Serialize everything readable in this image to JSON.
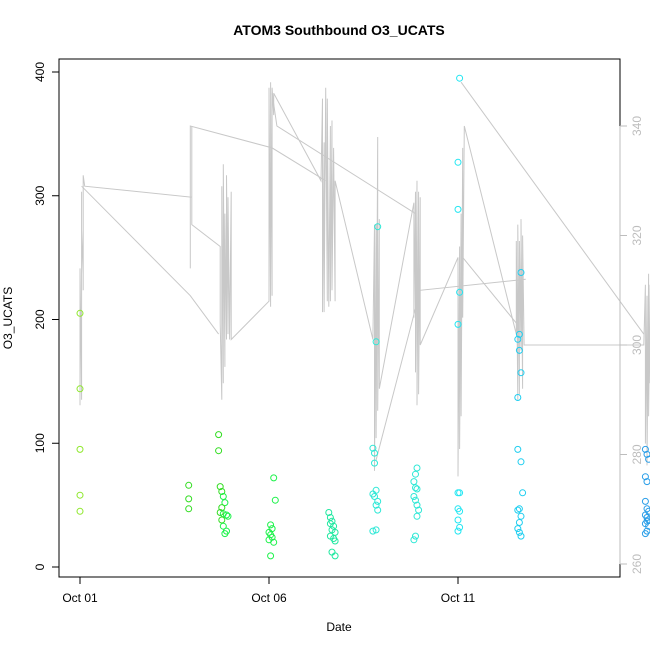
{
  "chart_data": {
    "type": "scatter",
    "title": "ATOM3 Southbound O3_UCATS",
    "xlabel": "Date",
    "ylabel": "O3_UCATS",
    "x_axis": {
      "type": "date",
      "ticks": [
        "Oct 01",
        "Oct 06",
        "Oct 11"
      ]
    },
    "y_left": {
      "ticks": [
        "0",
        "100",
        "200",
        "300",
        "400"
      ],
      "range": [
        0,
        400
      ]
    },
    "y_right": {
      "ticks": [
        "260",
        "280",
        "300",
        "320",
        "340"
      ],
      "range": [
        260,
        350
      ],
      "color": "#bdbdbd"
    },
    "background_line_color": "#c8c8c8",
    "point_colors": [
      "#8ee82b",
      "#33dd22",
      "#1cf24a",
      "#1fe8a0",
      "#2ee8d6",
      "#22e6f2",
      "#1fcef0",
      "#2a9ee8"
    ],
    "series": [
      {
        "marker": "open-circle",
        "axis": "left",
        "points": [
          [
            "2016-10-01 00:00",
            205
          ],
          [
            "2016-10-01 00:00",
            144
          ],
          [
            "2016-10-01 00:00",
            95
          ],
          [
            "2016-10-01 00:00",
            58
          ],
          [
            "2016-10-01 00:00",
            45
          ],
          [
            "2016-10-03 21:00",
            66
          ],
          [
            "2016-10-03 21:00",
            55
          ],
          [
            "2016-10-03 21:00",
            47
          ],
          [
            "2016-10-04 16:00",
            107
          ],
          [
            "2016-10-04 16:00",
            94
          ],
          [
            "2016-10-04 17:00",
            65
          ],
          [
            "2016-10-04 18:00",
            61
          ],
          [
            "2016-10-04 19:00",
            57
          ],
          [
            "2016-10-04 20:00",
            52
          ],
          [
            "2016-10-04 18:00",
            48
          ],
          [
            "2016-10-04 17:00",
            44
          ],
          [
            "2016-10-04 19:00",
            43
          ],
          [
            "2016-10-04 21:00",
            42
          ],
          [
            "2016-10-04 22:00",
            41
          ],
          [
            "2016-10-04 18:00",
            38
          ],
          [
            "2016-10-04 19:00",
            33
          ],
          [
            "2016-10-04 21:00",
            29
          ],
          [
            "2016-10-04 20:00",
            27
          ],
          [
            "2016-10-06 01:00",
            34
          ],
          [
            "2016-10-06 02:00",
            31
          ],
          [
            "2016-10-06 00:00",
            28
          ],
          [
            "2016-10-06 01:00",
            26
          ],
          [
            "2016-10-06 02:00",
            24
          ],
          [
            "2016-10-06 00:00",
            22
          ],
          [
            "2016-10-06 03:00",
            20
          ],
          [
            "2016-10-06 03:00",
            72
          ],
          [
            "2016-10-06 04:00",
            54
          ],
          [
            "2016-10-06 01:00",
            9
          ],
          [
            "2016-10-07 14:00",
            44
          ],
          [
            "2016-10-07 15:00",
            40
          ],
          [
            "2016-10-07 16:00",
            37
          ],
          [
            "2016-10-07 15:00",
            35
          ],
          [
            "2016-10-07 17:00",
            33
          ],
          [
            "2016-10-07 16:00",
            30
          ],
          [
            "2016-10-07 18:00",
            28
          ],
          [
            "2016-10-07 15:00",
            25
          ],
          [
            "2016-10-07 17:00",
            23
          ],
          [
            "2016-10-07 18:00",
            21
          ],
          [
            "2016-10-07 16:00",
            12
          ],
          [
            "2016-10-07 18:00",
            9
          ],
          [
            "2016-10-08 18:00",
            96
          ],
          [
            "2016-10-08 19:00",
            92
          ],
          [
            "2016-10-08 19:00",
            84
          ],
          [
            "2016-10-08 20:00",
            62
          ],
          [
            "2016-10-08 18:00",
            59
          ],
          [
            "2016-10-08 19:00",
            57
          ],
          [
            "2016-10-08 21:00",
            53
          ],
          [
            "2016-10-08 20:00",
            50
          ],
          [
            "2016-10-08 21:00",
            46
          ],
          [
            "2016-10-08 18:00",
            29
          ],
          [
            "2016-10-08 20:00",
            30
          ],
          [
            "2016-10-08 20:00",
            182
          ],
          [
            "2016-10-08 21:00",
            275
          ],
          [
            "2016-10-09 22:00",
            80
          ],
          [
            "2016-10-09 21:00",
            75
          ],
          [
            "2016-10-09 20:00",
            69
          ],
          [
            "2016-10-09 21:00",
            64
          ],
          [
            "2016-10-09 22:00",
            63
          ],
          [
            "2016-10-09 20:00",
            57
          ],
          [
            "2016-10-09 21:00",
            54
          ],
          [
            "2016-10-09 22:00",
            50
          ],
          [
            "2016-10-09 23:00",
            46
          ],
          [
            "2016-10-09 22:00",
            41
          ],
          [
            "2016-10-09 21:00",
            25
          ],
          [
            "2016-10-09 20:00",
            22
          ],
          [
            "2016-10-11 01:00",
            395
          ],
          [
            "2016-10-11 00:00",
            327
          ],
          [
            "2016-10-11 00:00",
            289
          ],
          [
            "2016-10-11 01:00",
            222
          ],
          [
            "2016-10-11 00:00",
            196
          ],
          [
            "2016-10-11 00:00",
            60
          ],
          [
            "2016-10-11 01:00",
            60
          ],
          [
            "2016-10-11 00:00",
            47
          ],
          [
            "2016-10-11 01:00",
            45
          ],
          [
            "2016-10-11 00:00",
            38
          ],
          [
            "2016-10-11 01:00",
            32
          ],
          [
            "2016-10-11 00:00",
            29
          ],
          [
            "2016-10-12 14:00",
            184
          ],
          [
            "2016-10-12 15:00",
            188
          ],
          [
            "2016-10-12 16:00",
            238
          ],
          [
            "2016-10-12 15:00",
            175
          ],
          [
            "2016-10-12 16:00",
            157
          ],
          [
            "2016-10-12 14:00",
            137
          ],
          [
            "2016-10-12 14:00",
            95
          ],
          [
            "2016-10-12 16:00",
            85
          ],
          [
            "2016-10-12 17:00",
            60
          ],
          [
            "2016-10-12 14:00",
            46
          ],
          [
            "2016-10-12 15:00",
            47
          ],
          [
            "2016-10-12 16:00",
            41
          ],
          [
            "2016-10-12 15:00",
            36
          ],
          [
            "2016-10-12 14:00",
            31
          ],
          [
            "2016-10-12 15:00",
            28
          ],
          [
            "2016-10-12 16:00",
            25
          ],
          [
            "2016-10-15 23:00",
            95
          ],
          [
            "2016-10-16 00:00",
            91
          ],
          [
            "2016-10-16 01:00",
            87
          ],
          [
            "2016-10-15 23:00",
            73
          ],
          [
            "2016-10-16 00:00",
            69
          ],
          [
            "2016-10-15 23:00",
            53
          ],
          [
            "2016-10-16 00:00",
            47
          ],
          [
            "2016-10-16 01:00",
            45
          ],
          [
            "2016-10-15 23:00",
            42
          ],
          [
            "2016-10-16 00:00",
            40
          ],
          [
            "2016-10-16 01:00",
            38
          ],
          [
            "2016-10-16 00:00",
            37
          ],
          [
            "2016-10-15 23:00",
            35
          ],
          [
            "2016-10-16 01:00",
            33
          ],
          [
            "2016-10-16 00:00",
            29
          ],
          [
            "2016-10-15 23:00",
            27
          ]
        ]
      },
      {
        "marker": "line",
        "axis": "right",
        "points": [
          [
            "2016-10-01 00:00",
            289
          ],
          [
            "2016-10-01 00:00",
            314
          ],
          [
            "2016-10-01 01:00",
            290
          ],
          [
            "2016-10-01 01:00",
            328
          ],
          [
            "2016-10-01 01:00",
            313
          ],
          [
            "2016-10-01 02:00",
            321
          ],
          [
            "2016-10-01 02:00",
            310
          ],
          [
            "2016-10-01 02:00",
            331
          ],
          [
            "2016-10-01 03:00",
            329
          ],
          [
            "2016-10-03 23:00",
            327
          ],
          [
            "2016-10-03 23:00",
            340
          ],
          [
            "2016-10-03 23:00",
            322
          ],
          [
            "2016-10-04 17:00",
            318
          ],
          [
            "2016-10-04 17:00",
            304
          ],
          [
            "2016-10-04 18:00",
            290
          ],
          [
            "2016-10-04 18:00",
            329
          ],
          [
            "2016-10-04 19:00",
            293
          ],
          [
            "2016-10-04 19:00",
            333
          ],
          [
            "2016-10-04 20:00",
            296
          ],
          [
            "2016-10-04 20:00",
            324
          ],
          [
            "2016-10-04 21:00",
            301
          ],
          [
            "2016-10-04 21:00",
            331
          ],
          [
            "2016-10-04 22:00",
            302
          ],
          [
            "2016-10-04 22:00",
            327
          ],
          [
            "2016-10-04 23:00",
            301
          ],
          [
            "2016-10-05 00:00",
            328
          ],
          [
            "2016-10-05 00:00",
            301
          ],
          [
            "2016-10-06 00:00",
            308
          ],
          [
            "2016-10-06 00:00",
            347
          ],
          [
            "2016-10-06 01:00",
            307
          ],
          [
            "2016-10-06 01:00",
            348
          ],
          [
            "2016-10-06 02:00",
            309
          ],
          [
            "2016-10-06 02:00",
            347
          ],
          [
            "2016-10-06 03:00",
            342
          ],
          [
            "2016-10-06 03:00",
            346
          ],
          [
            "2016-10-07 09:00",
            330
          ],
          [
            "2016-10-07 10:00",
            345
          ],
          [
            "2016-10-07 10:00",
            306
          ],
          [
            "2016-10-07 11:00",
            337
          ],
          [
            "2016-10-07 11:00",
            306
          ],
          [
            "2016-10-07 12:00",
            347
          ],
          [
            "2016-10-07 13:00",
            308
          ],
          [
            "2016-10-07 13:00",
            345
          ],
          [
            "2016-10-07 14:00",
            307
          ],
          [
            "2016-10-07 15:00",
            340
          ],
          [
            "2016-10-07 15:00",
            308
          ],
          [
            "2016-10-07 16:00",
            341
          ],
          [
            "2016-10-07 16:00",
            310
          ],
          [
            "2016-10-07 17:00",
            336
          ],
          [
            "2016-10-07 18:00",
            308
          ],
          [
            "2016-10-07 18:00",
            330
          ],
          [
            "2016-10-08 18:00",
            301
          ],
          [
            "2016-10-08 19:00",
            322
          ],
          [
            "2016-10-08 19:00",
            277
          ],
          [
            "2016-10-08 20:00",
            322
          ],
          [
            "2016-10-08 20:00",
            283
          ],
          [
            "2016-10-08 21:00",
            338
          ],
          [
            "2016-10-08 21:00",
            288
          ],
          [
            "2016-10-08 22:00",
            323
          ],
          [
            "2016-10-08 22:00",
            292
          ],
          [
            "2016-10-09 20:00",
            326
          ],
          [
            "2016-10-09 20:00",
            305
          ],
          [
            "2016-10-09 21:00",
            328
          ],
          [
            "2016-10-09 21:00",
            295
          ],
          [
            "2016-10-09 22:00",
            330
          ],
          [
            "2016-10-09 22:00",
            289
          ],
          [
            "2016-10-09 23:00",
            328
          ],
          [
            "2016-10-09 23:00",
            291
          ],
          [
            "2016-10-10 00:00",
            327
          ],
          [
            "2016-10-10 00:00",
            300
          ],
          [
            "2016-10-11 00:00",
            316
          ],
          [
            "2016-10-11 00:00",
            276
          ],
          [
            "2016-10-11 01:00",
            318
          ],
          [
            "2016-10-11 01:00",
            281
          ],
          [
            "2016-10-11 02:00",
            324
          ],
          [
            "2016-10-11 02:00",
            287
          ],
          [
            "2016-10-11 03:00",
            336
          ],
          [
            "2016-10-11 03:00",
            305
          ],
          [
            "2016-10-11 04:00",
            340
          ],
          [
            "2016-10-12 13:00",
            302
          ],
          [
            "2016-10-12 13:00",
            319
          ],
          [
            "2016-10-12 14:00",
            290
          ],
          [
            "2016-10-12 14:00",
            322
          ],
          [
            "2016-10-12 15:00",
            291
          ],
          [
            "2016-10-12 15:00",
            319
          ],
          [
            "2016-10-12 16:00",
            299
          ],
          [
            "2016-10-12 16:00",
            323
          ],
          [
            "2016-10-12 17:00",
            292
          ],
          [
            "2016-10-12 17:00",
            320
          ],
          [
            "2016-10-12 18:00",
            300
          ],
          [
            "2016-10-15 22:00",
            300
          ],
          [
            "2016-10-15 23:00",
            311
          ],
          [
            "2016-10-15 23:00",
            282
          ],
          [
            "2016-10-16 00:00",
            309
          ],
          [
            "2016-10-16 00:00",
            278
          ],
          [
            "2016-10-16 01:00",
            313
          ],
          [
            "2016-10-16 01:00",
            287
          ],
          [
            "2016-10-16 02:00",
            311
          ],
          [
            "2016-10-16 02:00",
            293
          ],
          [
            "2016-10-16 03:00",
            310
          ],
          [
            "2016-10-16 03:00",
            285
          ]
        ]
      }
    ],
    "connector_lines": [
      [
        [
          "2016-10-01 01:00",
          329
        ],
        [
          "2016-10-03 22:00",
          309
        ],
        [
          "2016-10-04 16:00",
          302
        ]
      ],
      [
        [
          "2016-10-03 22:00",
          314
        ],
        [
          "2016-10-03 22:00",
          340
        ],
        [
          "2016-10-06 02:00",
          336
        ],
        [
          "2016-10-07 12:00",
          330
        ]
      ],
      [
        [
          "2016-10-06 02:00",
          346
        ],
        [
          "2016-10-06 05:00",
          340
        ],
        [
          "2016-10-09 21:00",
          324
        ]
      ],
      [
        [
          "2016-10-08 20:00",
          279
        ],
        [
          "2016-10-10 00:00",
          310
        ],
        [
          "2016-10-12 19:00",
          312
        ]
      ],
      [
        [
          "2016-10-11 02:00",
          348
        ],
        [
          "2016-10-15 22:00",
          302
        ]
      ],
      [
        [
          "2016-10-11 03:00",
          316
        ],
        [
          "2016-10-12 13:00",
          304
        ]
      ]
    ],
    "grid": false,
    "legend": "none"
  }
}
